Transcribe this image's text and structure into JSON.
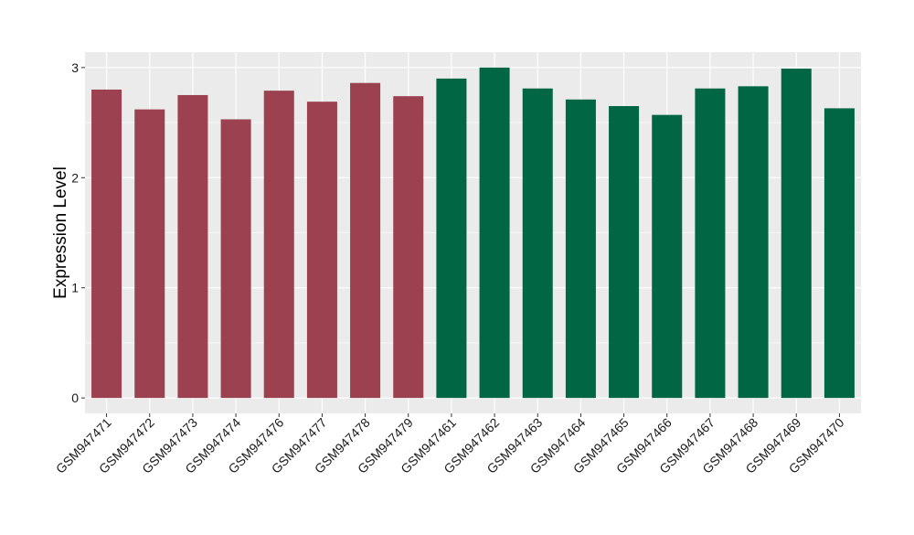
{
  "chart_data": {
    "type": "bar",
    "title": "",
    "xlabel": "",
    "ylabel": "Expression Level",
    "ylim": [
      -0.14,
      3.14
    ],
    "yticks": [
      0,
      1,
      2,
      3
    ],
    "ytick_labels": [
      "0",
      "1",
      "2",
      "3"
    ],
    "grid": true,
    "legend": "none",
    "background_color": "#ebebeb",
    "grid_color": "#ffffff",
    "categories": [
      "GSM947471",
      "GSM947472",
      "GSM947473",
      "GSM947474",
      "GSM947476",
      "GSM947477",
      "GSM947478",
      "GSM947479",
      "GSM947461",
      "GSM947462",
      "GSM947463",
      "GSM947464",
      "GSM947465",
      "GSM947466",
      "GSM947467",
      "GSM947468",
      "GSM947469",
      "GSM947470"
    ],
    "values": [
      2.8,
      2.62,
      2.75,
      2.53,
      2.79,
      2.69,
      2.86,
      2.74,
      2.9,
      3.0,
      2.81,
      2.71,
      2.65,
      2.57,
      2.81,
      2.83,
      2.99,
      2.63
    ],
    "bar_colors": [
      "#9b4150",
      "#9b4150",
      "#9b4150",
      "#9b4150",
      "#9b4150",
      "#9b4150",
      "#9b4150",
      "#9b4150",
      "#006644",
      "#006644",
      "#006644",
      "#006644",
      "#006644",
      "#006644",
      "#006644",
      "#006644",
      "#006644",
      "#006644"
    ]
  }
}
